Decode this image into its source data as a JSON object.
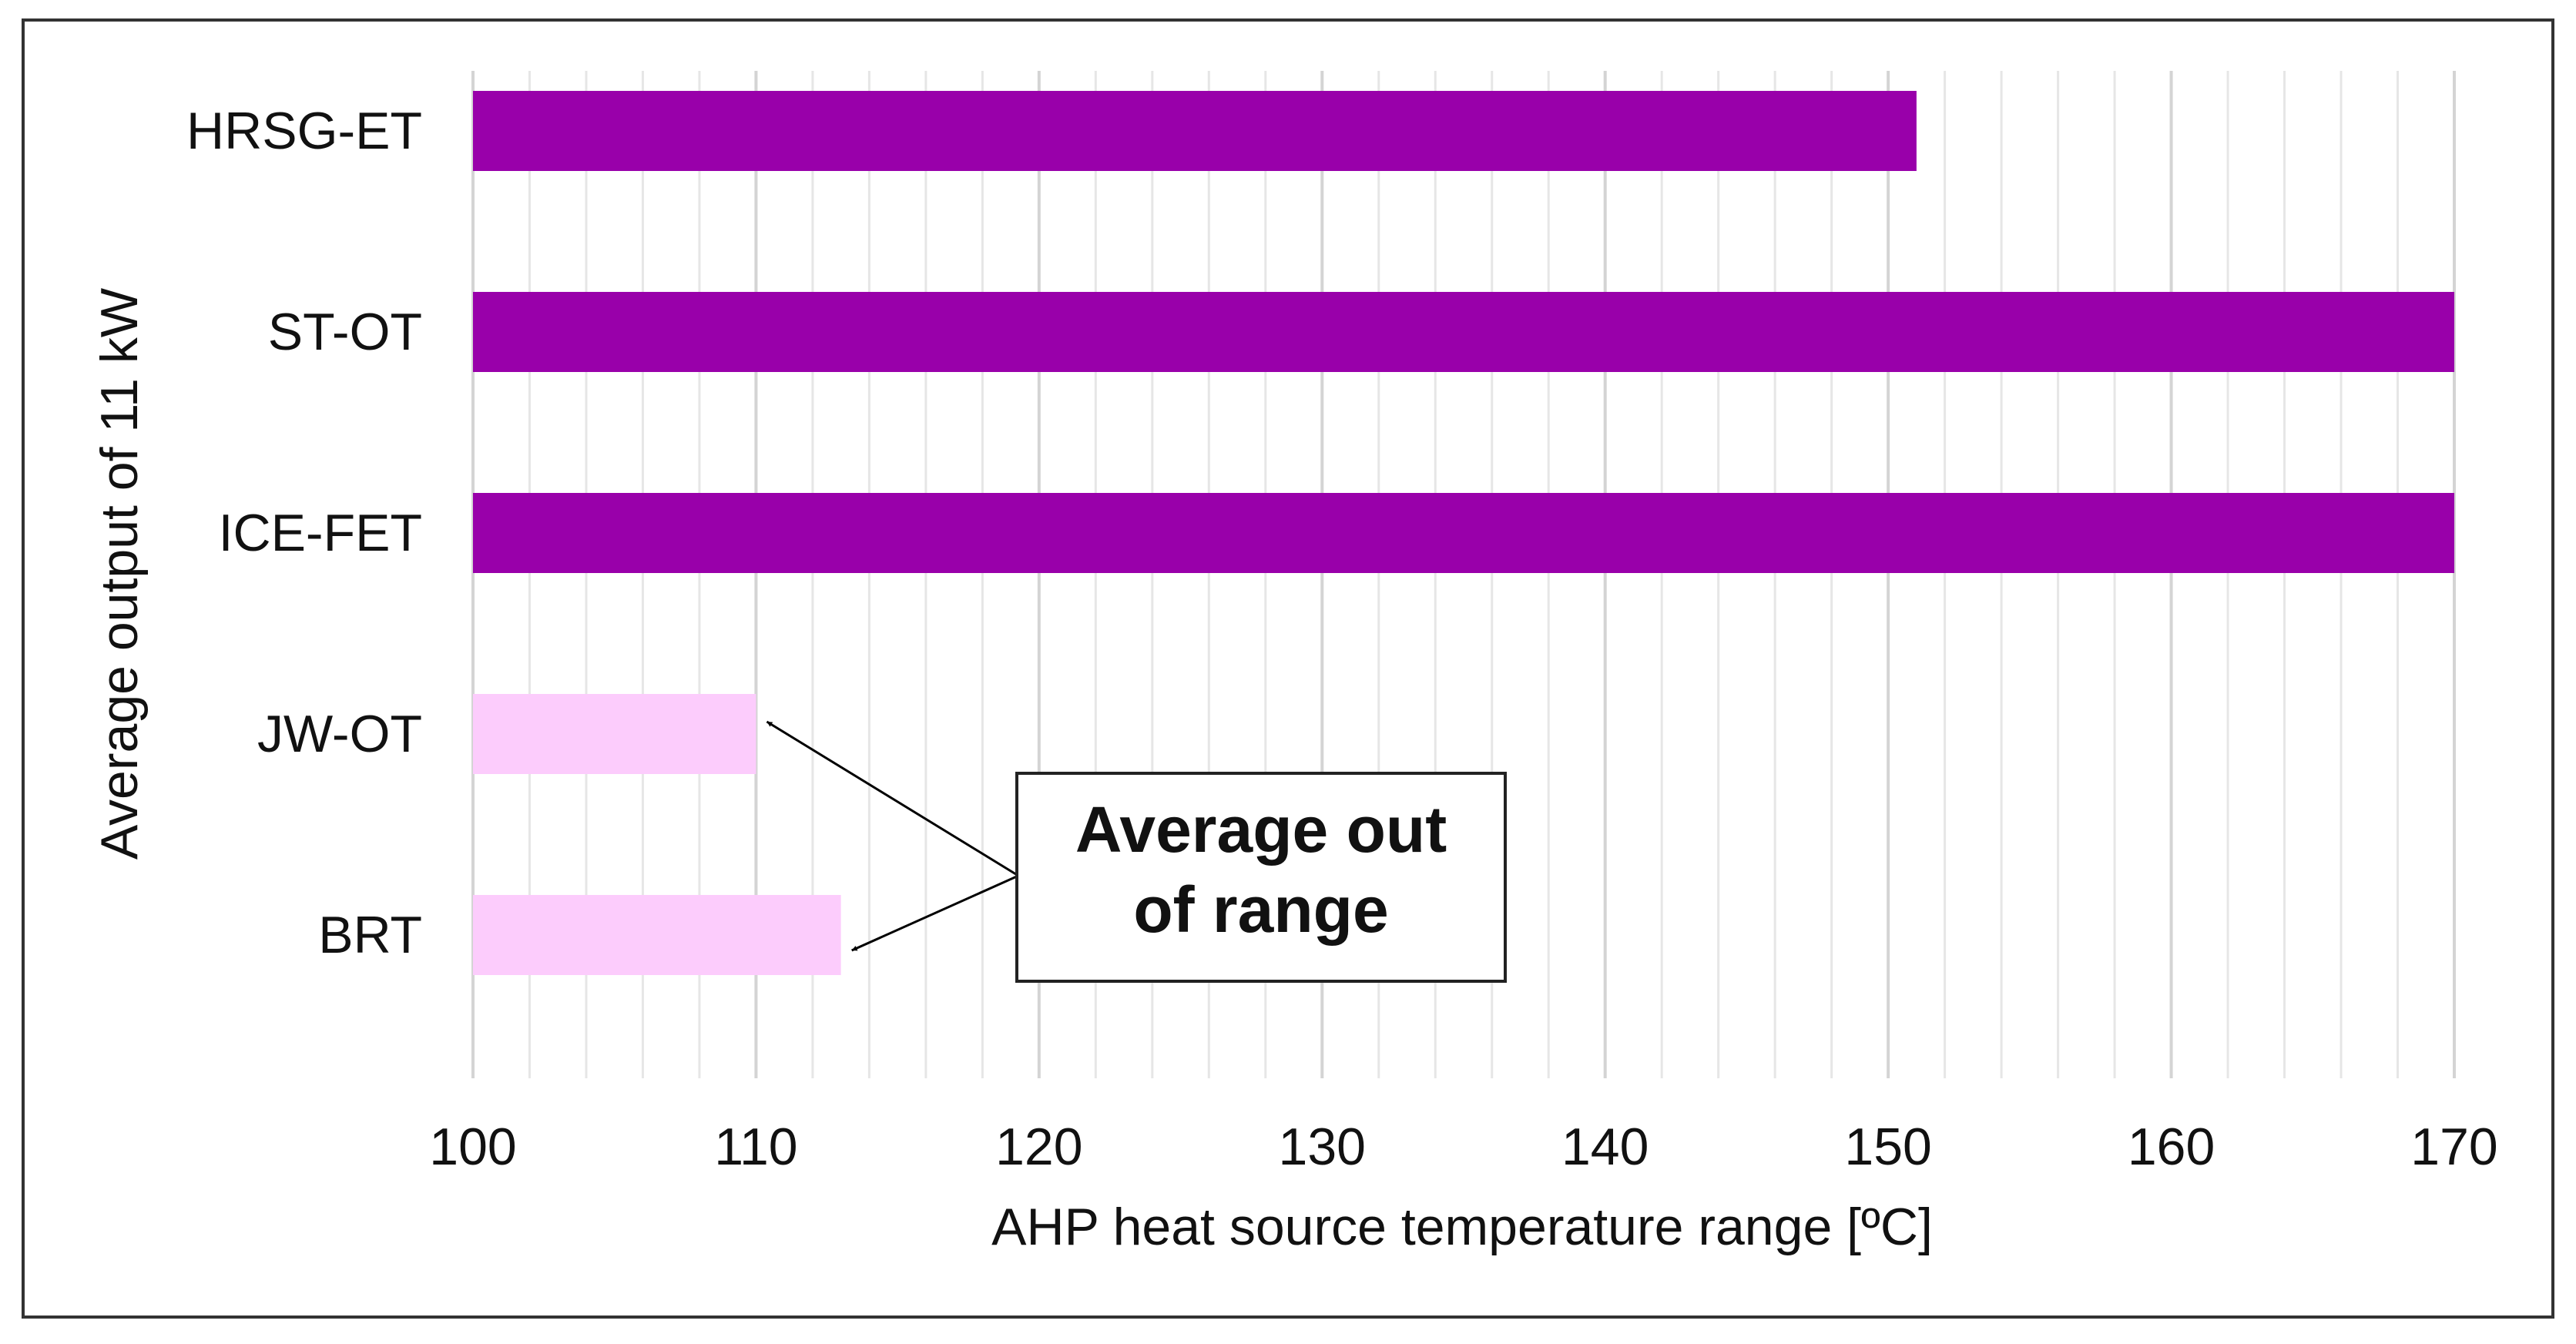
{
  "chart_data": {
    "type": "bar",
    "orientation": "horizontal",
    "title": "",
    "xlabel": "AHP heat source temperature range [ºC]",
    "ylabel": "Average output of 11 kW",
    "xlim": [
      100,
      170
    ],
    "major_ticks": [
      100,
      110,
      120,
      130,
      140,
      150,
      160,
      170
    ],
    "minor_tick_step": 2,
    "grid": true,
    "legend": "none",
    "categories": [
      "HRSG-ET",
      "ST-OT",
      "ICE-FET",
      "JW-OT",
      "BRT"
    ],
    "values": [
      151,
      170,
      170,
      110,
      113
    ],
    "status": [
      "in-range",
      "in-range",
      "in-range",
      "out-of-range",
      "out-of-range"
    ],
    "annotation": {
      "text_line1": "Average out",
      "text_line2": "of range",
      "points_to": [
        "JW-OT",
        "BRT"
      ]
    }
  },
  "colors": {
    "in-range": "#9900aa",
    "out-of-range": "#fcccfc",
    "grid_major": "#d4d4d4",
    "grid_minor": "#e6e6e6",
    "frame": "#333333",
    "arrow": "#000000"
  }
}
